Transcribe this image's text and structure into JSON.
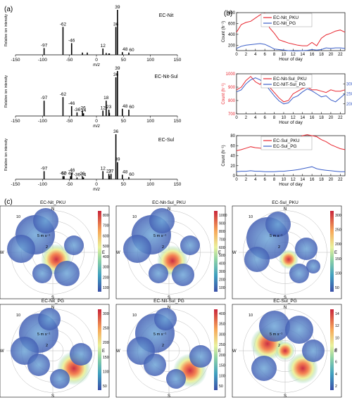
{
  "panel_labels": [
    "(a)",
    "(b)",
    "(c)"
  ],
  "colors": {
    "pku": "#e8252e",
    "pg": "#3a5ec8",
    "stick": "#000000"
  },
  "chart_data": [
    {
      "type": "bar",
      "name": "EC-Nit",
      "title": "EC-Nit",
      "ylabel": "Relative ion intensity",
      "xlabel": "m/z",
      "xlim": [
        -150,
        150
      ],
      "xticks": [
        -150,
        -100,
        -50,
        0,
        50,
        100,
        150
      ],
      "peaks": [
        {
          "mz": -97,
          "h": 0.15,
          "label": "-97"
        },
        {
          "mz": -62,
          "h": 0.62,
          "label": "-62"
        },
        {
          "mz": -46,
          "h": 0.26,
          "label": "-46"
        },
        {
          "mz": -26,
          "h": 0.05,
          "label": ""
        },
        {
          "mz": -17,
          "h": 0.05,
          "label": ""
        },
        {
          "mz": 12,
          "h": 0.14,
          "label": "12"
        },
        {
          "mz": 18,
          "h": 0.04,
          "label": ""
        },
        {
          "mz": 23,
          "h": 0.03,
          "label": ""
        },
        {
          "mz": 24,
          "h": 0.03,
          "label": ""
        },
        {
          "mz": 36,
          "h": 0.62,
          "label": "36"
        },
        {
          "mz": 39,
          "h": 1.0,
          "label": "39"
        },
        {
          "mz": 48,
          "h": 0.06,
          "label": "48"
        },
        {
          "mz": 60,
          "h": 0.05,
          "label": "60"
        }
      ]
    },
    {
      "type": "bar",
      "name": "EC-Nit-Sul",
      "title": "EC-Nit-Sul",
      "ylabel": "Relative ion intensity",
      "xlabel": "m/z",
      "xlim": [
        -150,
        150
      ],
      "xticks": [
        -150,
        -100,
        -50,
        0,
        50,
        100,
        150
      ],
      "peaks": [
        {
          "mz": -97,
          "h": 0.34,
          "label": "-97"
        },
        {
          "mz": -62,
          "h": 0.42,
          "label": "-62"
        },
        {
          "mz": -46,
          "h": 0.22,
          "label": "-46"
        },
        {
          "mz": -36,
          "h": 0.08,
          "label": "-36"
        },
        {
          "mz": -26,
          "h": 0.12,
          "label": "-26"
        },
        {
          "mz": -24,
          "h": 0.06,
          "label": "24"
        },
        {
          "mz": 12,
          "h": 0.12,
          "label": "12"
        },
        {
          "mz": 18,
          "h": 0.34,
          "label": "18"
        },
        {
          "mz": 23,
          "h": 0.14,
          "label": "23"
        },
        {
          "mz": 24,
          "h": 0.07,
          "label": ""
        },
        {
          "mz": 36,
          "h": 0.86,
          "label": "36"
        },
        {
          "mz": 39,
          "h": 1.0,
          "label": "39"
        },
        {
          "mz": 48,
          "h": 0.16,
          "label": "48"
        },
        {
          "mz": 60,
          "h": 0.14,
          "label": "60"
        }
      ]
    },
    {
      "type": "bar",
      "name": "EC-Sul",
      "title": "EC-Sul",
      "ylabel": "Relative ion intensity",
      "xlabel": "m/z",
      "xlim": [
        -150,
        150
      ],
      "xticks": [
        -150,
        -100,
        -50,
        0,
        50,
        100,
        150
      ],
      "peaks": [
        {
          "mz": -97,
          "h": 0.18,
          "label": "-97"
        },
        {
          "mz": -62,
          "h": 0.07,
          "label": "-62"
        },
        {
          "mz": -60,
          "h": 0.07,
          "label": "60"
        },
        {
          "mz": -48,
          "h": 0.07,
          "label": "48"
        },
        {
          "mz": -46,
          "h": 0.14,
          "label": "-46"
        },
        {
          "mz": -36,
          "h": 0.04,
          "label": "-36"
        },
        {
          "mz": -26,
          "h": 0.06,
          "label": "26"
        },
        {
          "mz": -24,
          "h": 0.04,
          "label": "24"
        },
        {
          "mz": 12,
          "h": 0.18,
          "label": "12"
        },
        {
          "mz": 23,
          "h": 0.12,
          "label": "23"
        },
        {
          "mz": 24,
          "h": 0.08,
          "label": ""
        },
        {
          "mz": 27,
          "h": 0.12,
          "label": "27"
        },
        {
          "mz": 36,
          "h": 1.0,
          "label": "36"
        },
        {
          "mz": 39,
          "h": 0.38,
          "label": "39"
        },
        {
          "mz": 48,
          "h": 0.1,
          "label": "48"
        },
        {
          "mz": 60,
          "h": 0.05,
          "label": "60"
        }
      ]
    },
    {
      "type": "line",
      "name": "EC-Nit diurnal",
      "xlabel": "Hour of day",
      "ylabel": "Count (h⁻¹)",
      "xlim": [
        0,
        23
      ],
      "ylim": [
        100,
        800
      ],
      "xticks": [
        0,
        2,
        4,
        6,
        8,
        10,
        12,
        14,
        16,
        18,
        20,
        22
      ],
      "yticks": [
        200,
        400,
        600,
        800
      ],
      "x": [
        0,
        1,
        2,
        3,
        4,
        5,
        6,
        7,
        8,
        9,
        10,
        11,
        12,
        13,
        14,
        15,
        16,
        17,
        18,
        19,
        20,
        21,
        22,
        23
      ],
      "series": [
        {
          "name": "EC-Nit_PKU",
          "color": "#e8252e",
          "values": [
            440,
            580,
            620,
            640,
            700,
            760,
            790,
            520,
            420,
            300,
            270,
            240,
            220,
            200,
            190,
            190,
            250,
            190,
            330,
            390,
            420,
            460,
            480,
            440
          ]
        },
        {
          "name": "EC-Nit_PG",
          "color": "#3a5ec8",
          "values": [
            140,
            180,
            200,
            210,
            220,
            230,
            215,
            175,
            130,
            120,
            110,
            100,
            95,
            95,
            100,
            105,
            120,
            110,
            120,
            150,
            140,
            150,
            150,
            140
          ]
        }
      ],
      "legend": "top-right"
    },
    {
      "type": "line",
      "name": "EC-Nit-Sul diurnal",
      "xlabel": "Hour of day",
      "ylabel": "Count (h⁻¹)",
      "ylabel_right": "Count (h⁻¹)",
      "xlim": [
        0,
        23
      ],
      "ylim": [
        700,
        1000
      ],
      "ylim_right": [
        150,
        350
      ],
      "xticks": [
        0,
        2,
        4,
        6,
        8,
        10,
        12,
        14,
        16,
        18,
        20,
        22
      ],
      "yticks": [
        700,
        800,
        900,
        1000
      ],
      "yticks_right": [
        200,
        250,
        300
      ],
      "x": [
        0,
        1,
        2,
        3,
        4,
        5,
        6,
        7,
        8,
        9,
        10,
        11,
        12,
        13,
        14,
        15,
        16,
        17,
        18,
        19,
        20,
        21,
        22,
        23
      ],
      "series": [
        {
          "name": "EC-Nit-Sul_PKU",
          "color": "#e8252e",
          "axis": "left",
          "values": [
            880,
            900,
            950,
            980,
            940,
            920,
            970,
            900,
            860,
            820,
            790,
            800,
            850,
            870,
            890,
            900,
            880,
            880,
            870,
            860,
            880,
            870,
            870,
            880
          ]
        },
        {
          "name": "EC-NIT-Sul_PG",
          "color": "#3a5ec8",
          "axis": "right",
          "values": [
            260,
            270,
            300,
            320,
            330,
            320,
            300,
            270,
            240,
            215,
            200,
            205,
            230,
            240,
            260,
            275,
            265,
            250,
            235,
            240,
            220,
            210,
            230,
            250
          ]
        }
      ],
      "legend": "top-right"
    },
    {
      "type": "line",
      "name": "EC-Sul diurnal",
      "xlabel": "Hour of day",
      "ylabel": "Count (h⁻¹)",
      "xlim": [
        0,
        23
      ],
      "ylim": [
        0,
        80
      ],
      "xticks": [
        0,
        2,
        4,
        6,
        8,
        10,
        12,
        14,
        16,
        18,
        20,
        22
      ],
      "yticks": [
        0,
        20,
        40,
        60,
        80
      ],
      "x": [
        0,
        1,
        2,
        3,
        4,
        5,
        6,
        7,
        8,
        9,
        10,
        11,
        12,
        13,
        14,
        15,
        16,
        17,
        18,
        19,
        20,
        21,
        22,
        23
      ],
      "series": [
        {
          "name": "EC-Sul_PKU",
          "color": "#e8252e",
          "values": [
            50,
            52,
            55,
            58,
            56,
            55,
            54,
            55,
            58,
            60,
            62,
            64,
            68,
            74,
            80,
            82,
            80,
            78,
            72,
            68,
            62,
            58,
            54,
            52
          ]
        },
        {
          "name": "EC-Sul_PG",
          "color": "#3a5ec8",
          "values": [
            8,
            9,
            9,
            10,
            9,
            9,
            8,
            8,
            8,
            9,
            9,
            10,
            11,
            12,
            14,
            16,
            18,
            14,
            12,
            11,
            10,
            9,
            8,
            8
          ]
        }
      ],
      "legend": "top-right"
    },
    {
      "type": "heatmap",
      "name": "polar plots",
      "rings": [
        "10",
        "5",
        "2"
      ],
      "ring_unit": "m s⁻¹",
      "compass": {
        "N": "N",
        "E": "E",
        "S": "S",
        "W": "W"
      },
      "plots": [
        {
          "title": "EC-Nit_PKU",
          "cbar_ticks": [
            100,
            200,
            300,
            400,
            500,
            600,
            700,
            800
          ]
        },
        {
          "title": "EC-Nit-Sul_PKU",
          "cbar_ticks": [
            100,
            200,
            300,
            400,
            500,
            600,
            700,
            800,
            900,
            1000
          ]
        },
        {
          "title": "EC-Sul_PKU",
          "cbar_ticks": [
            50,
            100,
            150,
            200,
            250,
            300
          ]
        },
        {
          "title": "EC-Nit_PG",
          "cbar_ticks": [
            50,
            100,
            150,
            200,
            250,
            300
          ]
        },
        {
          "title": "EC-Nit-Sul_PG",
          "cbar_ticks": [
            50,
            100,
            150,
            200,
            250,
            300,
            350,
            400
          ]
        },
        {
          "title": "EC-Sul_PG",
          "cbar_ticks": [
            2,
            4,
            6,
            8,
            10,
            12,
            14
          ]
        }
      ]
    }
  ]
}
